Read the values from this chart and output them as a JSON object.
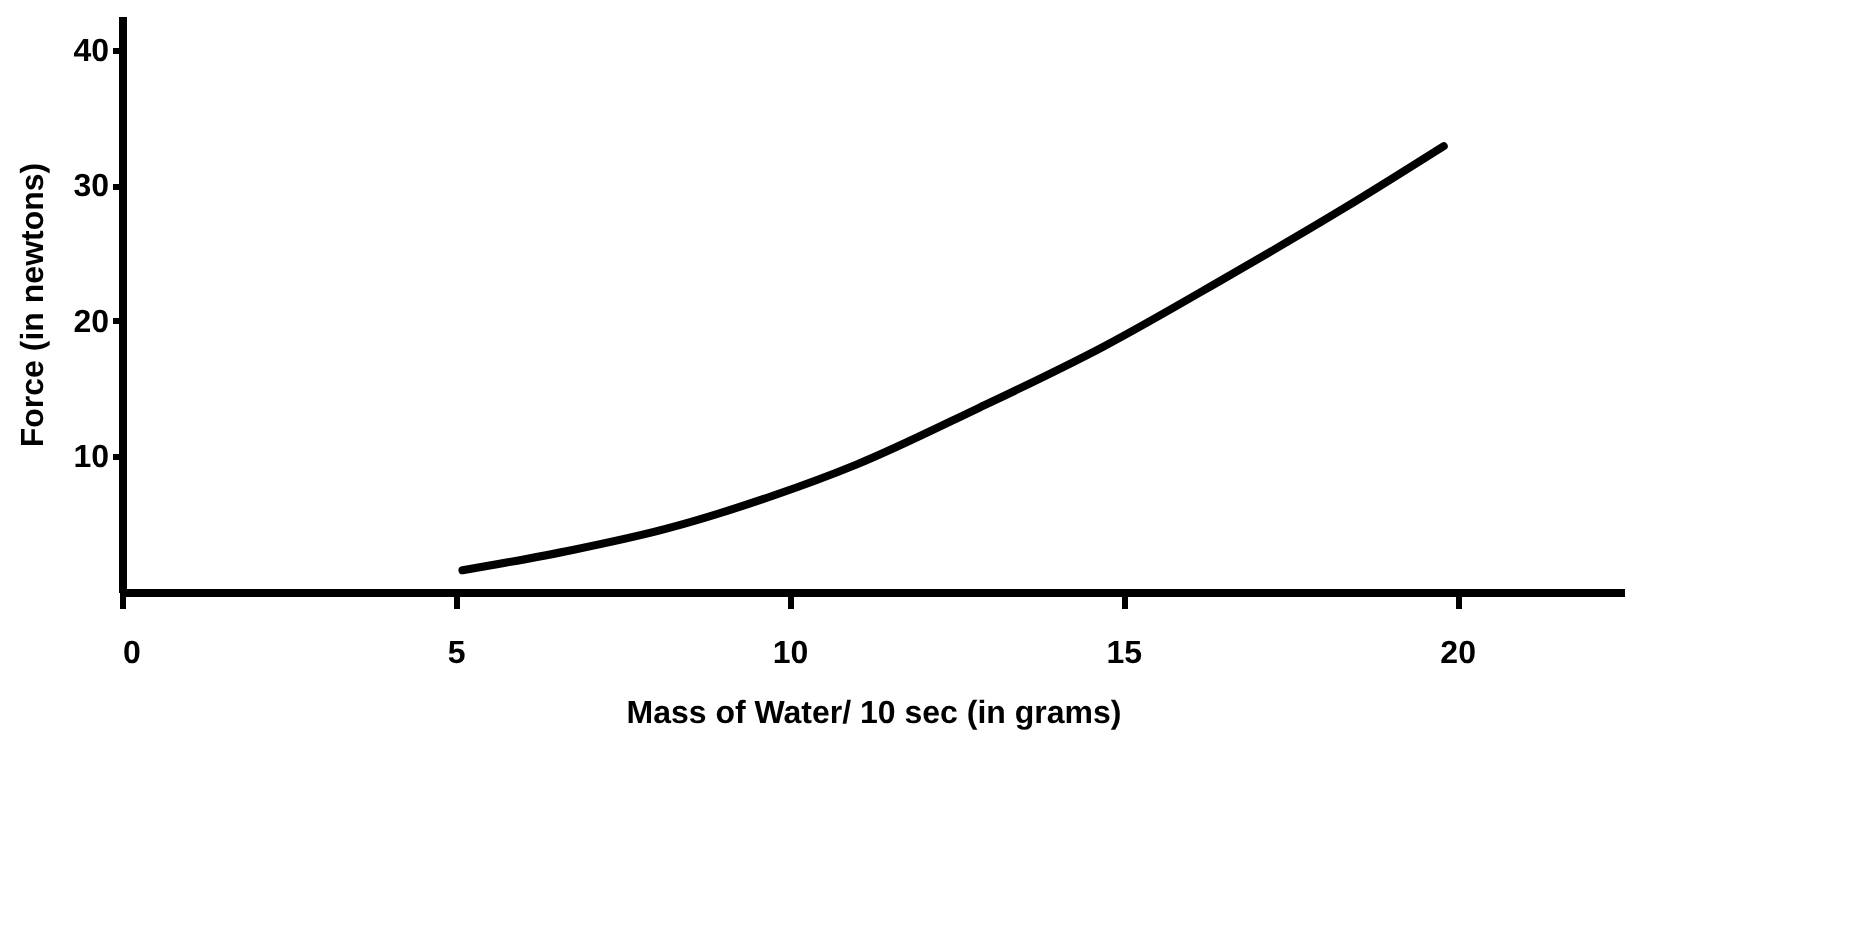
{
  "chart_data": {
    "type": "line",
    "xlabel": "Mass of Water/ 10 sec (in grams)",
    "ylabel": "Force (in newtons)",
    "x": [
      5.1,
      6.75,
      8.1,
      9.75,
      11.0,
      12.8,
      14.7,
      16.5,
      18.3,
      19.8
    ],
    "series": [
      {
        "color": "#000000",
        "values": [
          1.6,
          3.1,
          4.6,
          7.1,
          9.4,
          13.5,
          18.1,
          23.1,
          28.3,
          32.9
        ]
      }
    ],
    "xlim": [
      0,
      22.5
    ],
    "ylim": [
      0,
      42.5
    ],
    "xticks": [
      0,
      5,
      10,
      15,
      20
    ],
    "yticks": [
      10,
      20,
      30,
      40
    ],
    "grid": false,
    "marker": "none",
    "line_style": "solid"
  }
}
